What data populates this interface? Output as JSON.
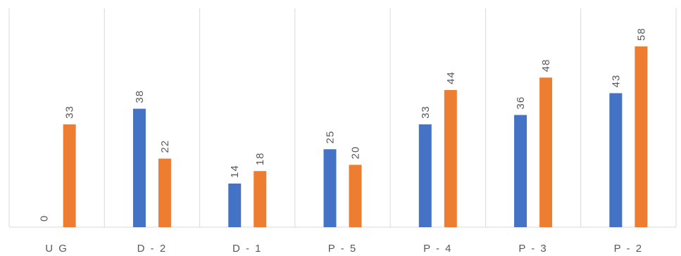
{
  "chart_data": {
    "type": "bar",
    "categories": [
      "U G",
      "D - 2",
      "D - 1",
      "P - 5",
      "P - 4",
      "P - 3",
      "P - 2"
    ],
    "series": [
      {
        "values": [
          0,
          38,
          14,
          25,
          33,
          36,
          43
        ],
        "color": "#4472C4"
      },
      {
        "values": [
          33,
          22,
          18,
          20,
          44,
          48,
          58
        ],
        "color": "#ED7D31"
      }
    ],
    "ylim": [
      0,
      58
    ],
    "grid": "vertical category separators",
    "data_labels": "rotated, above bars"
  }
}
